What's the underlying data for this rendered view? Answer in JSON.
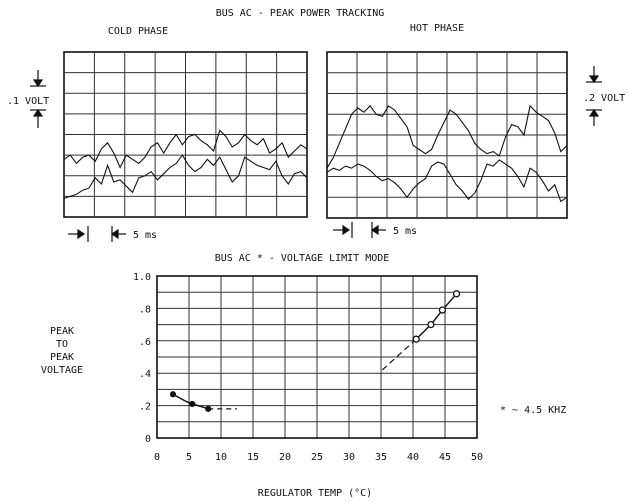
{
  "top_title": "BUS AC - PEAK POWER TRACKING",
  "cold_panel": {
    "label": "COLD PHASE",
    "scale_label": ".1 VOLT",
    "time_label": "5 ms"
  },
  "hot_panel": {
    "label": "HOT PHASE",
    "scale_label": ".2 VOLT",
    "time_label": "5 ms"
  },
  "colors": {
    "ink": "#111111",
    "grid": "#333333"
  },
  "chart_data": [
    {
      "type": "line",
      "title": "BUS AC - PEAK POWER TRACKING (COLD PHASE)",
      "xlabel": "",
      "ylabel": "",
      "grid": true,
      "note": "oscilloscope trace, 8 x 8 divisions",
      "series": [
        {
          "name": "",
          "values": [
            0.9,
            1.0,
            1.1,
            1.3,
            1.4,
            1.9,
            1.6,
            2.5,
            1.7,
            1.8,
            1.5,
            1.2,
            1.9,
            2.0,
            2.2,
            1.8,
            2.1,
            2.4,
            2.6,
            3.0,
            2.5,
            2.2,
            2.4,
            2.8,
            2.5,
            2.9,
            2.3,
            1.7,
            2.0,
            2.9,
            2.7,
            2.5,
            2.4,
            2.3,
            2.7,
            2.0,
            1.6,
            2.1,
            2.2,
            1.9
          ]
        },
        {
          "name": "",
          "values": [
            2.8,
            3.0,
            2.6,
            2.9,
            3.0,
            2.7,
            3.3,
            3.6,
            3.1,
            2.4,
            3.0,
            2.8,
            2.6,
            2.9,
            3.4,
            3.6,
            3.1,
            3.6,
            4.0,
            3.5,
            3.9,
            4.0,
            3.7,
            3.5,
            3.2,
            4.2,
            3.9,
            3.4,
            3.6,
            4.0,
            3.7,
            3.5,
            3.8,
            3.1,
            3.3,
            3.6,
            2.9,
            3.2,
            3.5,
            3.3
          ]
        }
      ]
    },
    {
      "type": "line",
      "title": "BUS AC - PEAK POWER TRACKING (HOT PHASE)",
      "xlabel": "",
      "ylabel": "",
      "grid": true,
      "note": "oscilloscope trace, 8 x 8 divisions",
      "series": [
        {
          "name": "",
          "values": [
            2.4,
            2.9,
            3.6,
            4.3,
            5.0,
            5.3,
            5.1,
            5.4,
            5.0,
            4.9,
            5.4,
            5.2,
            4.8,
            4.4,
            3.5,
            3.3,
            3.1,
            3.3,
            4.0,
            4.6,
            5.2,
            5.0,
            4.6,
            4.2,
            3.6,
            3.3,
            3.1,
            3.2,
            3.0,
            3.9,
            4.5,
            4.4,
            4.0,
            5.4,
            5.1,
            4.9,
            4.7,
            4.1,
            3.2,
            3.5
          ]
        },
        {
          "name": "",
          "values": [
            2.2,
            2.4,
            2.3,
            2.5,
            2.4,
            2.6,
            2.5,
            2.3,
            2.0,
            1.8,
            1.9,
            1.7,
            1.4,
            1.0,
            1.4,
            1.7,
            1.9,
            2.5,
            2.7,
            2.6,
            2.1,
            1.6,
            1.3,
            0.9,
            1.2,
            1.8,
            2.6,
            2.5,
            2.8,
            2.6,
            2.4,
            2.0,
            1.5,
            2.4,
            2.2,
            1.8,
            1.3,
            1.6,
            0.8,
            1.0
          ]
        }
      ]
    },
    {
      "type": "scatter",
      "title": "BUS AC * - VOLTAGE LIMIT MODE",
      "xlabel": "REGULATOR TEMP (°C)",
      "ylabel": "PEAK TO PEAK VOLTAGE",
      "xlim": [
        0,
        50
      ],
      "ylim": [
        0,
        1.0
      ],
      "x_ticks": [
        "0",
        "5",
        "10",
        "15",
        "20",
        "25",
        "30",
        "35",
        "40",
        "45",
        "50"
      ],
      "y_ticks": [
        "0",
        ".2",
        ".4",
        ".6",
        ".8",
        "1.0"
      ],
      "grid": true,
      "annotation": "* ~ 4.5 KHZ",
      "series": [
        {
          "name": "",
          "x": [
            2.5,
            5.5,
            8.0
          ],
          "y": [
            0.27,
            0.21,
            0.18
          ]
        },
        {
          "name": "",
          "x": [
            40.5,
            42.8,
            44.6,
            46.8
          ],
          "y": [
            0.61,
            0.7,
            0.79,
            0.89
          ]
        }
      ]
    }
  ]
}
